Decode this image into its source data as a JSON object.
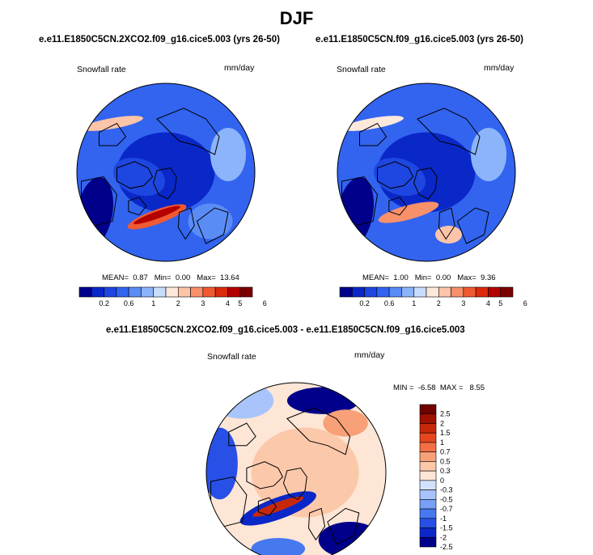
{
  "page_title": "DJF",
  "colors": {
    "sequential": [
      "#00008b",
      "#0a28c8",
      "#1e46e0",
      "#3264f0",
      "#5a8cf5",
      "#8cb4fa",
      "#c8dcfc",
      "#fde8dc",
      "#fcc4a8",
      "#f8906a",
      "#f05a32",
      "#dc2a0c",
      "#b40000",
      "#7a0000"
    ],
    "diverging": [
      "#00008b",
      "#0a28c8",
      "#2850e6",
      "#4678f0",
      "#78a0f5",
      "#a8c4fa",
      "#d2e2fc",
      "#fde6d6",
      "#fcc8aa",
      "#f8a078",
      "#f37046",
      "#e6461e",
      "#c8280a",
      "#a01000",
      "#700000"
    ],
    "coastline": "#000000"
  },
  "chart_data": [
    {
      "type": "heatmap",
      "title": "e.e11.E1850C5CN.2XCO2.f09_g16.cice5.003 (yrs 26-50)",
      "variable_label": "Snowfall rate",
      "units_label": "mm/day",
      "projection": "north polar stereographic",
      "stats": {
        "mean_label": "MEAN=",
        "mean": "0.87",
        "min_label": "Min=",
        "min": "0.00",
        "max_label": "Max=",
        "max": "13.64"
      },
      "colorbar_levels": [
        0.1,
        0.2,
        0.4,
        0.6,
        0.8,
        1,
        1.5,
        2,
        2.5,
        3,
        3.5,
        4,
        5,
        5.5,
        6
      ],
      "colorbar_tick_labels": [
        "0.2",
        "0.6",
        "1",
        "2",
        "3",
        "4",
        "5",
        "6"
      ]
    },
    {
      "type": "heatmap",
      "title": "e.e11.E1850C5CN.f09_g16.cice5.003 (yrs 26-50)",
      "variable_label": "Snowfall rate",
      "units_label": "mm/day",
      "projection": "north polar stereographic",
      "stats": {
        "mean_label": "MEAN=",
        "mean": "1.00",
        "min_label": "Min=",
        "min": "0.00",
        "max_label": "Max=",
        "max": "9.36"
      },
      "colorbar_levels": [
        0.1,
        0.2,
        0.4,
        0.6,
        0.8,
        1,
        1.5,
        2,
        2.5,
        3,
        3.5,
        4,
        5,
        5.5,
        6
      ],
      "colorbar_tick_labels": [
        "0.2",
        "0.6",
        "1",
        "2",
        "3",
        "4",
        "5",
        "6"
      ]
    },
    {
      "type": "heatmap",
      "title": "e.e11.E1850C5CN.2XCO2.f09_g16.cice5.003 - e.e11.E1850C5CN.f09_g16.cice5.003",
      "variable_label": "Snowfall rate",
      "units_label": "mm/day",
      "projection": "north polar stereographic",
      "stats": {
        "min_label": "MIN =",
        "min": "-6.58",
        "max_label": "MAX =",
        "max": "8.55"
      },
      "colorbar_levels": [
        2.5,
        2,
        1.5,
        1,
        0.7,
        0.5,
        0.3,
        0,
        -0.3,
        -0.5,
        -0.7,
        -1,
        -1.5,
        -2,
        -2.5
      ],
      "colorbar_tick_labels": [
        "2.5",
        "2",
        "1.5",
        "1",
        "0.7",
        "0.5",
        "0.3",
        "0",
        "-0.3",
        "-0.5",
        "-0.7",
        "-1",
        "-1.5",
        "-2",
        "-2.5"
      ]
    }
  ]
}
